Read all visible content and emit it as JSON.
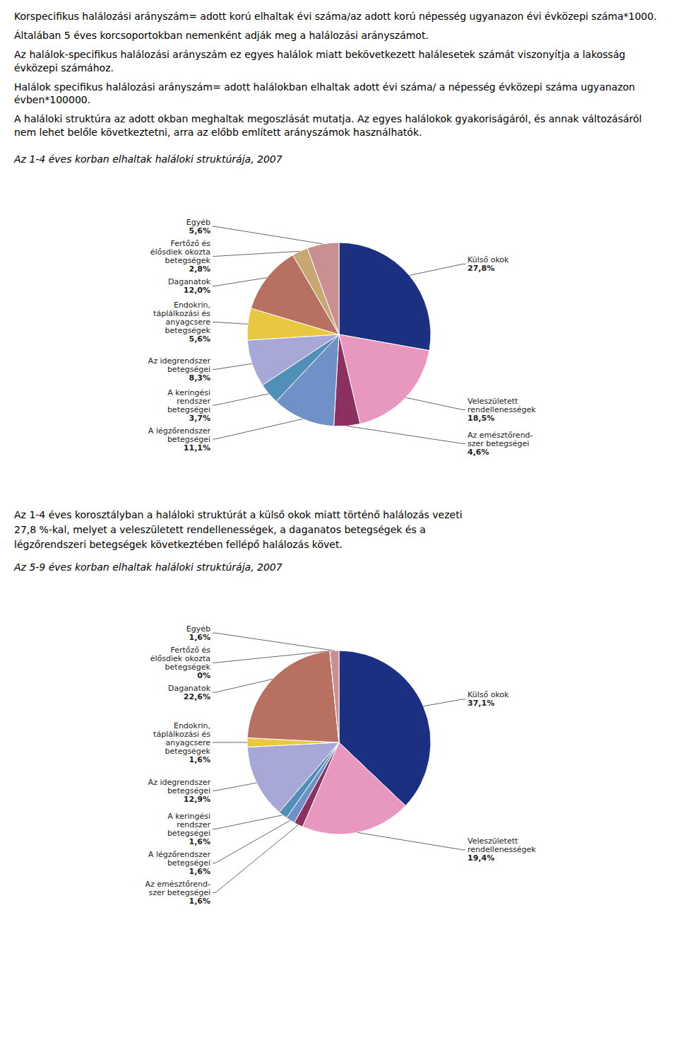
{
  "chart_data": [
    {
      "type": "pie",
      "annotations": [
        "Korspecifikus halálozási arányszám= adott korú elhaltak évi száma/az adott korú népesség ugyanazon évi évközepi száma*1000.",
        "Általában 5 éves korcsoportokban nemenként adják meg a halálozási arányszámot.",
        "Az halálok-specifikus halálozási arányszám ez egyes halálok miatt bekövetkezett halálesetek számát viszonyítja a lakosság évközepi számához.",
        "Halálok specifikus halálozási arányszám= adott halálokban elhaltak adott évi száma/ a népesség évközepi száma ugyanazon évben*100000.",
        "A haláloki struktúra az adott okban meghaltak megoszlását mutatja. Az egyes halálokok gyakoriságáról, és annak változásáról nem lehet belőle következtetni, arra az előbb említett arányszámok használhatók."
      ],
      "title": "Az 1-4 éves korban elhaltak haláloki struktúrája, 2007",
      "categories": [
        "Külső okok",
        "Veleszületett\nrendellenességek",
        "Az emésztőrend-\nszer betegségei",
        "A légzőrendszer\nbetegségei",
        "A keringési\nrendszer\nbetegségei",
        "Az idegrendszer\nbetegségei",
        "Endokrin,\ntáplálkozási és\nanyagcsere\nbetegségek",
        "Daganatok",
        "Fertőző és\nélősdiek okozta\nbetegségek",
        "Egyéb"
      ],
      "values": [
        27.8,
        18.5,
        4.6,
        11.1,
        3.7,
        8.3,
        5.6,
        12.0,
        2.8,
        5.6
      ],
      "value_labels": [
        "27,8%",
        "18,5%",
        "4,6%",
        "11,1%",
        "3,7%",
        "8,3%",
        "5,6%",
        "12,0%",
        "2,8%",
        "5,6%"
      ],
      "colors": [
        "#1B3080",
        "#E898BE",
        "#8B3060",
        "#7090C8",
        "#5090B8",
        "#A8A8D8",
        "#E8C840",
        "#B87060",
        "#C8A870",
        "#C89090"
      ],
      "data_labels": true
    },
    {
      "type": "pie",
      "annotations": [
        "Az 1-4 éves korosztályban a haláloki struktúrát a külső okok miatt történő halálozás vezeti",
        "27,8 %-kal, melyet a veleszületett rendellenességek, a daganatos betegségek és a",
        "légzőrendszeri betegségek következtében fellépő halálozás követ."
      ],
      "title": "Az 5-9 éves korban elhaltak haláloki struktúrája, 2007",
      "categories": [
        "Külső okok",
        "Veleszületett\nrendellenességek",
        "Az emésztőrend-\nszer betegségei",
        "A légzőrendszer\nbetegségei",
        "A keringési\nrendszer\nbetegségei",
        "Az idegrendszer\nbetegségei",
        "Endokrin,\ntáplálkozási és\nanyagcsere\nbetegségek",
        "Daganatok",
        "Fertőző és\nélősdiek okozta\nbetegségek",
        "Egyéb"
      ],
      "values": [
        37.1,
        19.4,
        1.6,
        1.6,
        1.6,
        12.9,
        1.6,
        22.6,
        0.001,
        1.6
      ],
      "value_labels": [
        "37,1%",
        "19,4%",
        "1,6%",
        "1,6%",
        "1,6%",
        "12,9%",
        "1,6%",
        "22,6%",
        "0%",
        "1,6%"
      ],
      "colors": [
        "#1B3080",
        "#E898BE",
        "#8B3060",
        "#7090C8",
        "#5090B8",
        "#A8A8D8",
        "#E8C840",
        "#B87060",
        "#C8A870",
        "#C89090"
      ],
      "data_labels": true
    }
  ]
}
